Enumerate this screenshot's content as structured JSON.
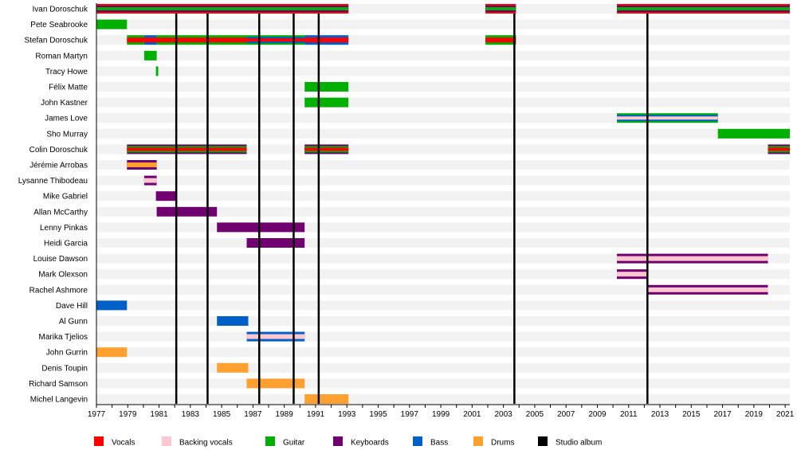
{
  "chart_data": {
    "type": "timeline",
    "title": "",
    "xlim": [
      1977,
      2021.3
    ],
    "x_ticks": [
      1977,
      1979,
      1981,
      1983,
      1985,
      1987,
      1989,
      1991,
      1993,
      1995,
      1997,
      1999,
      2001,
      2003,
      2005,
      2007,
      2009,
      2011,
      2013,
      2015,
      2017,
      2019,
      2021
    ],
    "colors": {
      "vocals": "#ff0000",
      "backing": "#ffc8d0",
      "guitar": "#00b000",
      "keyboards": "#700070",
      "bass": "#0060c8",
      "drums": "#ffa030",
      "album": "#000000"
    },
    "legend": [
      {
        "key": "vocals",
        "label": "Vocals"
      },
      {
        "key": "backing",
        "label": "Backing vocals"
      },
      {
        "key": "guitar",
        "label": "Guitar"
      },
      {
        "key": "keyboards",
        "label": "Keyboards"
      },
      {
        "key": "bass",
        "label": "Bass"
      },
      {
        "key": "drums",
        "label": "Drums"
      },
      {
        "key": "album",
        "label": "Studio album"
      }
    ],
    "albums": [
      1982.1,
      1984.1,
      1987.4,
      1989.6,
      1991.2,
      2003.7,
      2012.2
    ],
    "members": [
      {
        "name": "Ivan Doroschuk",
        "spans": [
          {
            "from": 1977,
            "to": 1993.1,
            "layers": [
              "vocals",
              "keyboards",
              "guitar"
            ]
          },
          {
            "from": 2001.85,
            "to": 2003.8,
            "layers": [
              "vocals",
              "keyboards",
              "guitar"
            ]
          },
          {
            "from": 2010.25,
            "to": 2021.3,
            "layers": [
              "vocals",
              "keyboards",
              "guitar"
            ]
          }
        ]
      },
      {
        "name": "Pete Seabrooke",
        "spans": [
          {
            "from": 1977,
            "to": 1978.95,
            "layers": [
              "guitar"
            ]
          }
        ]
      },
      {
        "name": "Stefan Doroschuk",
        "spans": [
          {
            "from": 1978.95,
            "to": 1980.05,
            "layers": [
              "guitar",
              "vocals"
            ]
          },
          {
            "from": 1980.05,
            "to": 1980.85,
            "layers": [
              "bass",
              "vocals"
            ]
          },
          {
            "from": 1980.85,
            "to": 1986.6,
            "layers": [
              "guitar",
              "vocals"
            ]
          },
          {
            "from": 1986.6,
            "to": 1990.3,
            "layers": [
              "guitar",
              "bass",
              "vocals"
            ]
          },
          {
            "from": 1990.3,
            "to": 1993.1,
            "layers": [
              "bass",
              "vocals"
            ]
          },
          {
            "from": 2001.85,
            "to": 2003.8,
            "layers": [
              "guitar",
              "vocals"
            ]
          }
        ]
      },
      {
        "name": "Roman Martyn",
        "spans": [
          {
            "from": 1980.05,
            "to": 1980.85,
            "layers": [
              "guitar"
            ]
          }
        ]
      },
      {
        "name": "Tracy Howe",
        "spans": [
          {
            "from": 1980.8,
            "to": 1980.95,
            "layers": [
              "guitar"
            ]
          }
        ]
      },
      {
        "name": "Félix Matte",
        "spans": [
          {
            "from": 1990.3,
            "to": 1993.1,
            "layers": [
              "guitar"
            ]
          }
        ]
      },
      {
        "name": "John Kastner",
        "spans": [
          {
            "from": 1990.3,
            "to": 1993.1,
            "layers": [
              "guitar"
            ]
          }
        ]
      },
      {
        "name": "James Love",
        "spans": [
          {
            "from": 2010.25,
            "to": 2016.7,
            "layers": [
              "guitar",
              "bass",
              "backing"
            ]
          }
        ]
      },
      {
        "name": "Sho Murray",
        "spans": [
          {
            "from": 2016.7,
            "to": 2021.3,
            "layers": [
              "guitar"
            ]
          }
        ]
      },
      {
        "name": "Colin Doroschuk",
        "spans": [
          {
            "from": 1978.95,
            "to": 1986.6,
            "layers": [
              "keyboards",
              "guitar",
              "vocals"
            ]
          },
          {
            "from": 1990.3,
            "to": 1993.1,
            "layers": [
              "keyboards",
              "guitar",
              "vocals"
            ]
          },
          {
            "from": 2019.9,
            "to": 2021.3,
            "layers": [
              "keyboards",
              "guitar",
              "vocals"
            ]
          }
        ]
      },
      {
        "name": "Jérémie Arrobas",
        "spans": [
          {
            "from": 1978.95,
            "to": 1980.85,
            "layers": [
              "keyboards",
              "drums"
            ]
          }
        ]
      },
      {
        "name": "Lysanne Thibodeau",
        "spans": [
          {
            "from": 1980.05,
            "to": 1980.85,
            "layers": [
              "keyboards",
              "backing"
            ]
          }
        ]
      },
      {
        "name": "Mike Gabriel",
        "spans": [
          {
            "from": 1980.8,
            "to": 1982.1,
            "layers": [
              "keyboards"
            ]
          }
        ]
      },
      {
        "name": "Allan McCarthy",
        "spans": [
          {
            "from": 1980.85,
            "to": 1984.7,
            "layers": [
              "keyboards"
            ]
          }
        ]
      },
      {
        "name": "Lenny Pinkas",
        "spans": [
          {
            "from": 1984.7,
            "to": 1990.3,
            "layers": [
              "keyboards"
            ]
          }
        ]
      },
      {
        "name": "Heidi Garcia",
        "spans": [
          {
            "from": 1986.6,
            "to": 1990.3,
            "layers": [
              "keyboards"
            ]
          }
        ]
      },
      {
        "name": "Louise Dawson",
        "spans": [
          {
            "from": 2010.25,
            "to": 2019.9,
            "layers": [
              "keyboards",
              "backing"
            ]
          }
        ]
      },
      {
        "name": "Mark Olexson",
        "spans": [
          {
            "from": 2010.25,
            "to": 2012.2,
            "layers": [
              "keyboards",
              "backing"
            ]
          }
        ]
      },
      {
        "name": "Rachel Ashmore",
        "spans": [
          {
            "from": 2012.2,
            "to": 2019.9,
            "layers": [
              "keyboards",
              "backing"
            ]
          }
        ]
      },
      {
        "name": "Dave Hill",
        "spans": [
          {
            "from": 1977,
            "to": 1978.95,
            "layers": [
              "bass"
            ]
          }
        ]
      },
      {
        "name": "Al Gunn",
        "spans": [
          {
            "from": 1984.7,
            "to": 1986.7,
            "layers": [
              "bass"
            ]
          }
        ]
      },
      {
        "name": "Marika Tjelios",
        "spans": [
          {
            "from": 1986.6,
            "to": 1990.3,
            "layers": [
              "bass",
              "backing"
            ]
          }
        ]
      },
      {
        "name": "John Gurrin",
        "spans": [
          {
            "from": 1977,
            "to": 1978.95,
            "layers": [
              "drums"
            ]
          }
        ]
      },
      {
        "name": "Denis Toupin",
        "spans": [
          {
            "from": 1984.7,
            "to": 1986.7,
            "layers": [
              "drums"
            ]
          }
        ]
      },
      {
        "name": "Richard Samson",
        "spans": [
          {
            "from": 1986.6,
            "to": 1990.3,
            "layers": [
              "drums"
            ]
          }
        ]
      },
      {
        "name": "Michel Langevin",
        "spans": [
          {
            "from": 1990.3,
            "to": 1993.1,
            "layers": [
              "drums"
            ]
          }
        ]
      }
    ]
  }
}
